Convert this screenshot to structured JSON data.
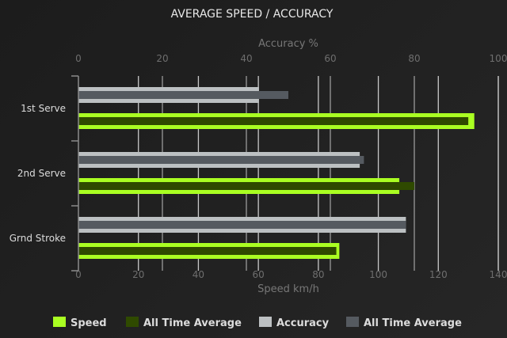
{
  "chart_data": {
    "type": "bar",
    "orientation": "horizontal",
    "title": "AVERAGE SPEED / ACCURACY",
    "top_axis": {
      "label": "Accuracy %",
      "range": [
        0,
        100
      ],
      "ticks": [
        0,
        20,
        40,
        60,
        80,
        100
      ]
    },
    "bottom_axis": {
      "label": "Speed km/h",
      "range": [
        0,
        140
      ],
      "ticks": [
        0,
        20,
        40,
        60,
        80,
        100,
        120,
        140
      ]
    },
    "categories": [
      "1st Serve",
      "2nd Serve",
      "Grnd Stroke"
    ],
    "series": [
      {
        "name": "Speed",
        "axis": "bottom",
        "values": [
          132,
          107,
          87
        ],
        "color": "#aaff22"
      },
      {
        "name": "All Time Average",
        "axis": "bottom",
        "values": [
          130,
          112,
          86
        ],
        "color": "#2f4a00"
      },
      {
        "name": "Accuracy",
        "axis": "top",
        "values": [
          43,
          67,
          78
        ],
        "color": "#bcc0c2"
      },
      {
        "name": "All Time Average",
        "axis": "top",
        "values": [
          50,
          68,
          78
        ],
        "color": "#555a60"
      }
    ],
    "grid": true,
    "legend_position": "bottom"
  }
}
